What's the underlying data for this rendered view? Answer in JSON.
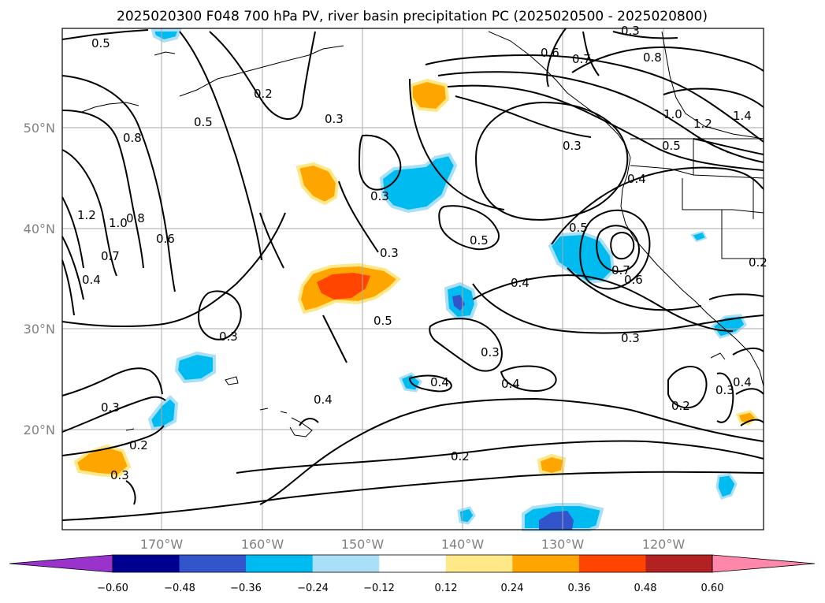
{
  "title": "2025020300 F048 700 hPa PV, river basin precipitation PC (2025020500 - 2025020800)",
  "map": {
    "lat_labels": [
      "50°N",
      "40°N",
      "30°N",
      "20°N"
    ],
    "lon_labels": [
      "170°W",
      "160°W",
      "150°W",
      "140°W",
      "130°W",
      "120°W"
    ]
  },
  "contour_labels": [
    "0.5",
    "0.2",
    "0.5",
    "0.3",
    "0.6",
    "0.7",
    "0.8",
    "1.0",
    "1.2",
    "1.4",
    "0.3",
    "0.5",
    "0.4",
    "0.8",
    "1.2",
    "1.0",
    "0.8",
    "0.6",
    "0.7",
    "0.4",
    "0.3",
    "0.5",
    "0.3",
    "0.5",
    "0.4",
    "0.5",
    "0.7",
    "0.6",
    "0.3",
    "0.3",
    "0.4",
    "0.4",
    "0.4",
    "0.3",
    "0.2",
    "0.2",
    "0.3",
    "0.2",
    "0.3",
    "0.3",
    "0.4",
    "0.2",
    "0.3"
  ],
  "colorbar": {
    "ticks": [
      "−0.60",
      "−0.48",
      "−0.36",
      "−0.24",
      "−0.12",
      "0.12",
      "0.24",
      "0.36",
      "0.48",
      "0.60"
    ],
    "colors": [
      "#9933cc",
      "#000090",
      "#3355cc",
      "#00bbf0",
      "#aadff8",
      "#ffffff",
      "#ffe888",
      "#ffa500",
      "#ff4500",
      "#b22222",
      "#ff88aa"
    ]
  }
}
